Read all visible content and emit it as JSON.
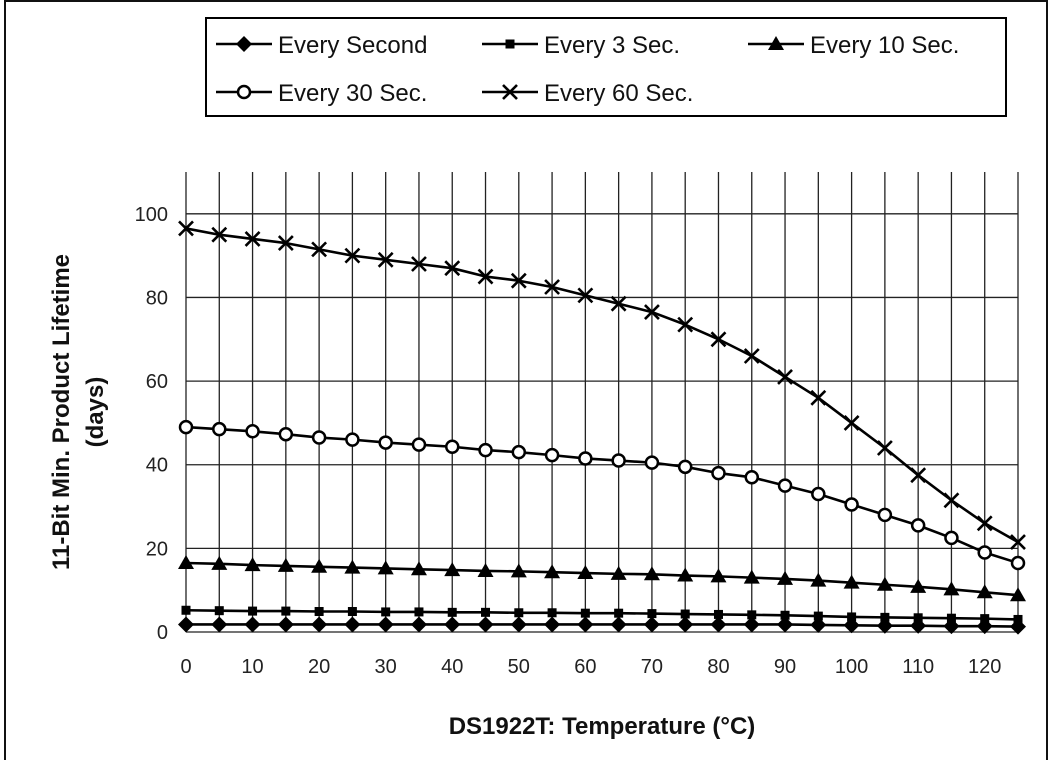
{
  "chart_data": {
    "type": "line",
    "xlabel": "DS1922T: Temperature (°C)",
    "ylabel": [
      "11-Bit Min. Product Lifetime",
      "(days)"
    ],
    "xlim": [
      0,
      125
    ],
    "ylim": [
      0,
      110
    ],
    "xticks": [
      0,
      10,
      20,
      30,
      40,
      50,
      60,
      70,
      80,
      90,
      100,
      110,
      120
    ],
    "yticks": [
      0,
      20,
      40,
      60,
      80,
      100
    ],
    "grid": true,
    "legend_position": "top",
    "x": [
      0,
      5,
      10,
      15,
      20,
      25,
      30,
      35,
      40,
      45,
      50,
      55,
      60,
      65,
      70,
      75,
      80,
      85,
      90,
      95,
      100,
      105,
      110,
      115,
      120,
      125
    ],
    "series": [
      {
        "name": "Every Second",
        "marker": "diamond",
        "values": [
          1.8,
          1.8,
          1.8,
          1.8,
          1.8,
          1.8,
          1.8,
          1.8,
          1.8,
          1.8,
          1.8,
          1.8,
          1.8,
          1.8,
          1.8,
          1.8,
          1.8,
          1.8,
          1.8,
          1.7,
          1.6,
          1.5,
          1.5,
          1.4,
          1.4,
          1.3
        ]
      },
      {
        "name": "Every 3 Sec.",
        "marker": "square",
        "values": [
          5.2,
          5.1,
          5.0,
          5.0,
          4.9,
          4.9,
          4.8,
          4.8,
          4.7,
          4.7,
          4.6,
          4.6,
          4.5,
          4.5,
          4.4,
          4.3,
          4.2,
          4.1,
          4.0,
          3.8,
          3.6,
          3.5,
          3.4,
          3.3,
          3.2,
          3.0
        ]
      },
      {
        "name": "Every 10 Sec.",
        "marker": "triangle",
        "values": [
          16.5,
          16.3,
          16.0,
          15.8,
          15.6,
          15.4,
          15.2,
          15.0,
          14.8,
          14.6,
          14.5,
          14.3,
          14.1,
          13.9,
          13.8,
          13.5,
          13.3,
          13.0,
          12.7,
          12.3,
          11.8,
          11.3,
          10.8,
          10.2,
          9.5,
          8.8
        ]
      },
      {
        "name": "Every 30 Sec.",
        "marker": "circle",
        "values": [
          49.0,
          48.5,
          48.0,
          47.3,
          46.5,
          46.0,
          45.3,
          44.8,
          44.3,
          43.5,
          43.0,
          42.3,
          41.5,
          41.0,
          40.5,
          39.5,
          38.0,
          37.0,
          35.0,
          33.0,
          30.5,
          28.0,
          25.5,
          22.5,
          19.0,
          16.5
        ]
      },
      {
        "name": "Every 60 Sec.",
        "marker": "x",
        "values": [
          96.5,
          95.0,
          94.0,
          93.0,
          91.5,
          90.0,
          89.0,
          88.0,
          87.0,
          85.0,
          84.0,
          82.5,
          80.5,
          78.5,
          76.5,
          73.5,
          70.0,
          66.0,
          61.0,
          56.0,
          50.0,
          44.0,
          37.5,
          31.5,
          26.0,
          21.5
        ]
      }
    ]
  }
}
